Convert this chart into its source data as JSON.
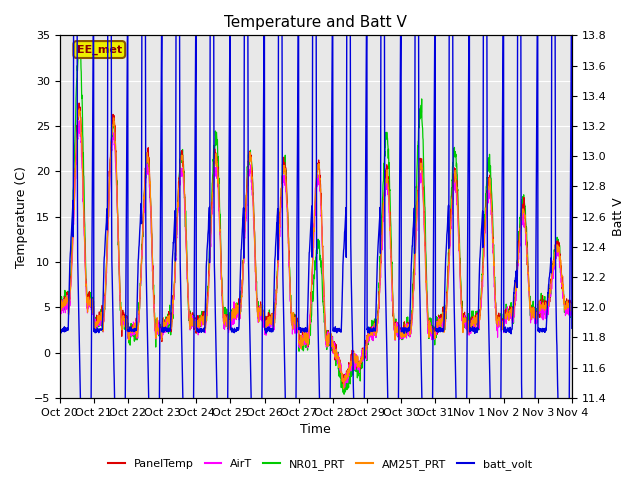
{
  "title": "Temperature and Batt V",
  "xlabel": "Time",
  "ylabel_left": "Temperature (C)",
  "ylabel_right": "Batt V",
  "ylim_left": [
    -5,
    35
  ],
  "ylim_right": [
    11.4,
    13.8
  ],
  "yticks_left": [
    -5,
    0,
    5,
    10,
    15,
    20,
    25,
    30,
    35
  ],
  "yticks_right": [
    11.4,
    11.6,
    11.8,
    12.0,
    12.2,
    12.4,
    12.6,
    12.8,
    13.0,
    13.2,
    13.4,
    13.6,
    13.8
  ],
  "xtick_labels": [
    "Oct 20",
    "Oct 21",
    "Oct 22",
    "Oct 23",
    "Oct 24",
    "Oct 25",
    "Oct 26",
    "Oct 27",
    "Oct 28",
    "Oct 29",
    "Oct 30",
    "Oct 31",
    "Nov 1",
    "Nov 2",
    "Nov 3",
    "Nov 4"
  ],
  "annotation_text": "EE_met",
  "colors": {
    "PanelTemp": "#dd0000",
    "AirT": "#ff00ff",
    "NR01_PRT": "#00cc00",
    "AM25T_PRT": "#ff8800",
    "batt_volt": "#0000dd"
  },
  "background_color": "#e8e8e8",
  "n_days": 15,
  "pts_per_day": 144
}
